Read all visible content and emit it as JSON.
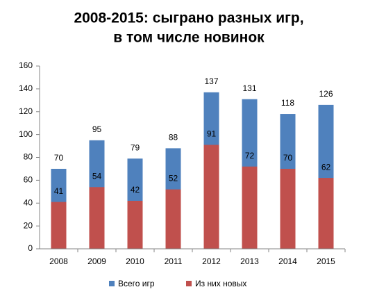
{
  "chart_data": {
    "type": "bar",
    "barmode": "overlay",
    "title": [
      "2008-2015: сыграно разных игр,",
      "в том числе новинок"
    ],
    "categories": [
      "2008",
      "2009",
      "2010",
      "2011",
      "2012",
      "2013",
      "2014",
      "2015"
    ],
    "series": [
      {
        "name": "Всего игр",
        "color": "#4f81bd",
        "values": [
          70,
          95,
          79,
          88,
          137,
          131,
          118,
          126
        ]
      },
      {
        "name": "Из них новых",
        "color": "#c0504d",
        "values": [
          41,
          54,
          42,
          52,
          91,
          72,
          70,
          62
        ]
      }
    ],
    "ylim": [
      0,
      160
    ],
    "yticks": [
      0,
      20,
      40,
      60,
      80,
      100,
      120,
      140,
      160
    ],
    "grid": false,
    "legend": "bottom"
  }
}
